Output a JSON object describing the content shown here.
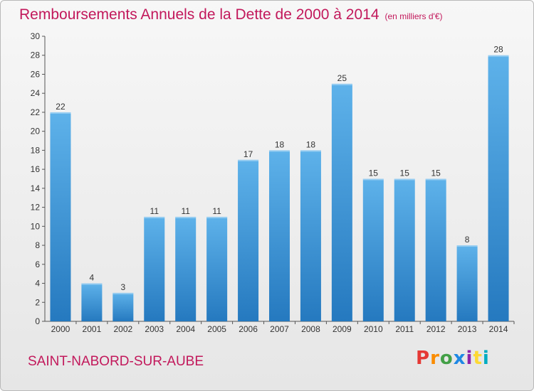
{
  "header": {
    "title": "Remboursements Annuels de la Dette de 2000 à 2014",
    "subtitle": "(en milliers d'€)"
  },
  "footer": {
    "commune": "SAINT-NABORD-SUR-AUBE",
    "logo": {
      "text": "Proxiti",
      "colors": [
        "#e53935",
        "#fb8c00",
        "#43a047",
        "#1e88e5",
        "#8e24aa",
        "#fdd835",
        "#00acc1"
      ]
    }
  },
  "colors": {
    "title": "#c2185b",
    "bar_light": "#5eb2ea",
    "bar_dark": "#2579bf"
  },
  "chart_data": {
    "type": "bar",
    "categories": [
      "2000",
      "2001",
      "2002",
      "2003",
      "2004",
      "2005",
      "2006",
      "2007",
      "2008",
      "2009",
      "2010",
      "2011",
      "2012",
      "2013",
      "2014"
    ],
    "values": [
      22,
      4,
      3,
      11,
      11,
      11,
      17,
      18,
      18,
      25,
      15,
      15,
      15,
      8,
      28
    ],
    "ylim": [
      0,
      30
    ],
    "yticks": [
      0,
      2,
      4,
      6,
      8,
      10,
      12,
      14,
      16,
      18,
      20,
      22,
      24,
      26,
      28,
      30
    ],
    "grid": false,
    "data_labels": true
  }
}
